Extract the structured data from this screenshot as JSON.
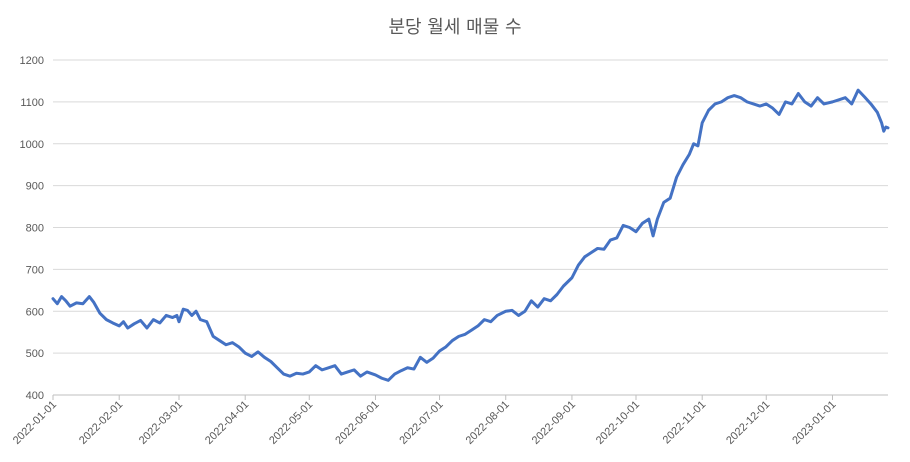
{
  "chart_data": {
    "type": "line",
    "title": "분당 월세 매물 수",
    "xlabel": "",
    "ylabel": "",
    "ylim": [
      400,
      1200
    ],
    "yticks": [
      400,
      500,
      600,
      700,
      800,
      900,
      1000,
      1100,
      1200
    ],
    "grid": true,
    "legend": "none",
    "x_tick_labels": [
      "2022-01-01",
      "2022-02-01",
      "2022-03-01",
      "2022-04-01",
      "2022-05-01",
      "2022-06-01",
      "2022-07-01",
      "2022-08-01",
      "2022-09-01",
      "2022-10-01",
      "2022-11-01",
      "2022-12-01",
      "2023-01-01"
    ],
    "x_range": [
      "2022-01-01",
      "2023-01-27"
    ],
    "series": [
      {
        "color": "#4472C4",
        "points": [
          [
            "2022-01-01",
            630
          ],
          [
            "2022-01-03",
            618
          ],
          [
            "2022-01-05",
            635
          ],
          [
            "2022-01-07",
            625
          ],
          [
            "2022-01-09",
            612
          ],
          [
            "2022-01-12",
            620
          ],
          [
            "2022-01-15",
            618
          ],
          [
            "2022-01-18",
            635
          ],
          [
            "2022-01-20",
            622
          ],
          [
            "2022-01-23",
            595
          ],
          [
            "2022-01-26",
            580
          ],
          [
            "2022-01-29",
            572
          ],
          [
            "2022-02-01",
            565
          ],
          [
            "2022-02-03",
            575
          ],
          [
            "2022-02-05",
            560
          ],
          [
            "2022-02-08",
            570
          ],
          [
            "2022-02-11",
            578
          ],
          [
            "2022-02-14",
            560
          ],
          [
            "2022-02-17",
            580
          ],
          [
            "2022-02-20",
            572
          ],
          [
            "2022-02-23",
            590
          ],
          [
            "2022-02-26",
            585
          ],
          [
            "2022-02-28",
            590
          ],
          [
            "2022-03-01",
            575
          ],
          [
            "2022-03-03",
            605
          ],
          [
            "2022-03-05",
            602
          ],
          [
            "2022-03-07",
            590
          ],
          [
            "2022-03-09",
            600
          ],
          [
            "2022-03-11",
            580
          ],
          [
            "2022-03-14",
            575
          ],
          [
            "2022-03-17",
            540
          ],
          [
            "2022-03-20",
            530
          ],
          [
            "2022-03-23",
            520
          ],
          [
            "2022-03-26",
            525
          ],
          [
            "2022-03-29",
            515
          ],
          [
            "2022-04-01",
            500
          ],
          [
            "2022-04-04",
            492
          ],
          [
            "2022-04-07",
            503
          ],
          [
            "2022-04-10",
            490
          ],
          [
            "2022-04-13",
            480
          ],
          [
            "2022-04-16",
            465
          ],
          [
            "2022-04-19",
            450
          ],
          [
            "2022-04-22",
            445
          ],
          [
            "2022-04-25",
            452
          ],
          [
            "2022-04-28",
            450
          ],
          [
            "2022-05-01",
            455
          ],
          [
            "2022-05-04",
            470
          ],
          [
            "2022-05-07",
            460
          ],
          [
            "2022-05-10",
            465
          ],
          [
            "2022-05-13",
            470
          ],
          [
            "2022-05-16",
            450
          ],
          [
            "2022-05-19",
            455
          ],
          [
            "2022-05-22",
            460
          ],
          [
            "2022-05-25",
            445
          ],
          [
            "2022-05-28",
            455
          ],
          [
            "2022-06-01",
            448
          ],
          [
            "2022-06-04",
            440
          ],
          [
            "2022-06-07",
            435
          ],
          [
            "2022-06-10",
            450
          ],
          [
            "2022-06-13",
            458
          ],
          [
            "2022-06-16",
            465
          ],
          [
            "2022-06-19",
            462
          ],
          [
            "2022-06-22",
            490
          ],
          [
            "2022-06-25",
            478
          ],
          [
            "2022-06-28",
            488
          ],
          [
            "2022-07-01",
            505
          ],
          [
            "2022-07-04",
            515
          ],
          [
            "2022-07-07",
            530
          ],
          [
            "2022-07-10",
            540
          ],
          [
            "2022-07-13",
            545
          ],
          [
            "2022-07-16",
            555
          ],
          [
            "2022-07-19",
            565
          ],
          [
            "2022-07-22",
            580
          ],
          [
            "2022-07-25",
            575
          ],
          [
            "2022-07-28",
            590
          ],
          [
            "2022-08-01",
            600
          ],
          [
            "2022-08-04",
            602
          ],
          [
            "2022-08-07",
            590
          ],
          [
            "2022-08-10",
            600
          ],
          [
            "2022-08-13",
            625
          ],
          [
            "2022-08-16",
            610
          ],
          [
            "2022-08-19",
            630
          ],
          [
            "2022-08-22",
            625
          ],
          [
            "2022-08-25",
            640
          ],
          [
            "2022-08-28",
            660
          ],
          [
            "2022-09-01",
            680
          ],
          [
            "2022-09-04",
            710
          ],
          [
            "2022-09-07",
            730
          ],
          [
            "2022-09-10",
            740
          ],
          [
            "2022-09-13",
            750
          ],
          [
            "2022-09-16",
            748
          ],
          [
            "2022-09-19",
            770
          ],
          [
            "2022-09-22",
            775
          ],
          [
            "2022-09-25",
            805
          ],
          [
            "2022-09-28",
            800
          ],
          [
            "2022-10-01",
            790
          ],
          [
            "2022-10-04",
            810
          ],
          [
            "2022-10-07",
            820
          ],
          [
            "2022-10-09",
            780
          ],
          [
            "2022-10-11",
            820
          ],
          [
            "2022-10-14",
            860
          ],
          [
            "2022-10-17",
            870
          ],
          [
            "2022-10-20",
            920
          ],
          [
            "2022-10-23",
            950
          ],
          [
            "2022-10-26",
            975
          ],
          [
            "2022-10-28",
            1000
          ],
          [
            "2022-10-30",
            995
          ],
          [
            "2022-11-01",
            1050
          ],
          [
            "2022-11-04",
            1080
          ],
          [
            "2022-11-07",
            1095
          ],
          [
            "2022-11-10",
            1100
          ],
          [
            "2022-11-13",
            1110
          ],
          [
            "2022-11-16",
            1115
          ],
          [
            "2022-11-19",
            1110
          ],
          [
            "2022-11-22",
            1100
          ],
          [
            "2022-11-25",
            1095
          ],
          [
            "2022-11-28",
            1090
          ],
          [
            "2022-12-01",
            1095
          ],
          [
            "2022-12-04",
            1085
          ],
          [
            "2022-12-07",
            1070
          ],
          [
            "2022-12-10",
            1100
          ],
          [
            "2022-12-13",
            1095
          ],
          [
            "2022-12-16",
            1120
          ],
          [
            "2022-12-19",
            1100
          ],
          [
            "2022-12-22",
            1090
          ],
          [
            "2022-12-25",
            1110
          ],
          [
            "2022-12-28",
            1095
          ],
          [
            "2023-01-01",
            1100
          ],
          [
            "2023-01-04",
            1105
          ],
          [
            "2023-01-07",
            1110
          ],
          [
            "2023-01-10",
            1095
          ],
          [
            "2023-01-13",
            1128
          ],
          [
            "2023-01-16",
            1112
          ],
          [
            "2023-01-19",
            1095
          ],
          [
            "2023-01-22",
            1075
          ],
          [
            "2023-01-24",
            1050
          ],
          [
            "2023-01-25",
            1030
          ],
          [
            "2023-01-26",
            1040
          ],
          [
            "2023-01-27",
            1038
          ]
        ]
      }
    ]
  }
}
